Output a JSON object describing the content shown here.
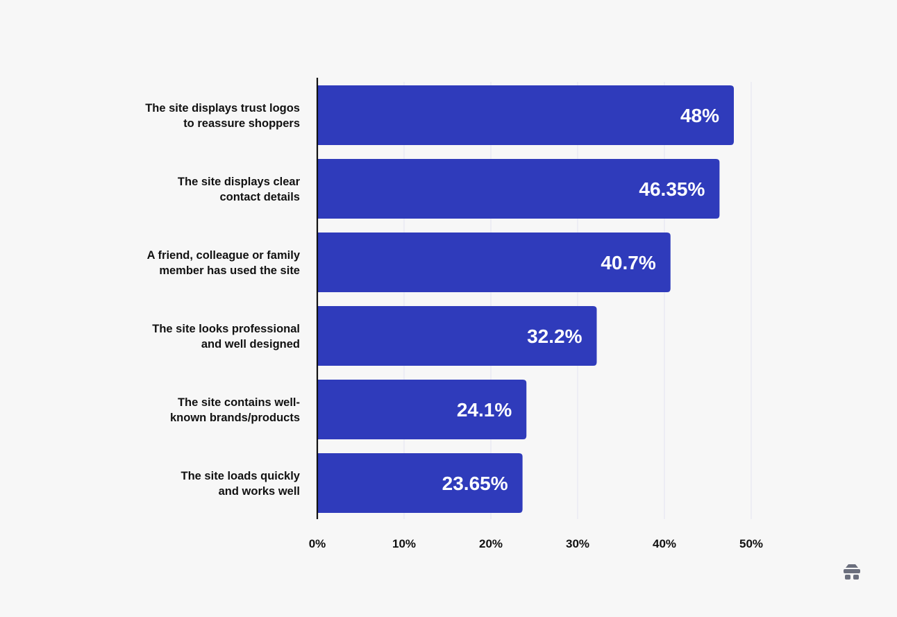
{
  "chart_data": {
    "type": "bar",
    "orientation": "horizontal",
    "categories": [
      "The site displays trust logos to reassure shoppers",
      "The site displays clear contact details",
      "A friend, colleague or family member has used the site",
      "The site looks professional and well designed",
      "The site contains well-known brands/products",
      "The site loads quickly and works well"
    ],
    "category_lines": [
      [
        "The site displays trust logos",
        "to reassure shoppers"
      ],
      [
        "The site displays clear",
        "contact details"
      ],
      [
        "A friend, colleague or family",
        "member has used the site"
      ],
      [
        "The site looks professional",
        "and well designed"
      ],
      [
        "The site contains well-",
        "known brands/products"
      ],
      [
        "The site loads quickly",
        "and works well"
      ]
    ],
    "values": [
      48,
      46.35,
      40.7,
      32.2,
      24.1,
      23.65
    ],
    "data_labels": [
      "48%",
      "46.35%",
      "40.7%",
      "32.2%",
      "24.1%",
      "23.65%"
    ],
    "xlim": [
      0,
      50
    ],
    "xticks": [
      0,
      10,
      20,
      30,
      40,
      50
    ],
    "xtick_labels": [
      "0%",
      "10%",
      "20%",
      "30%",
      "40%",
      "50%"
    ],
    "title": "",
    "xlabel": "",
    "ylabel": "",
    "grid": true,
    "legend": "none",
    "colors": {
      "bar": "#2f3bbb",
      "grid": "#e3e3f2",
      "axis": "#111111",
      "background": "#f7f7f7"
    }
  },
  "brand_logo": {
    "icon": "beehive-logo-icon",
    "color": "#6b6f7d"
  }
}
